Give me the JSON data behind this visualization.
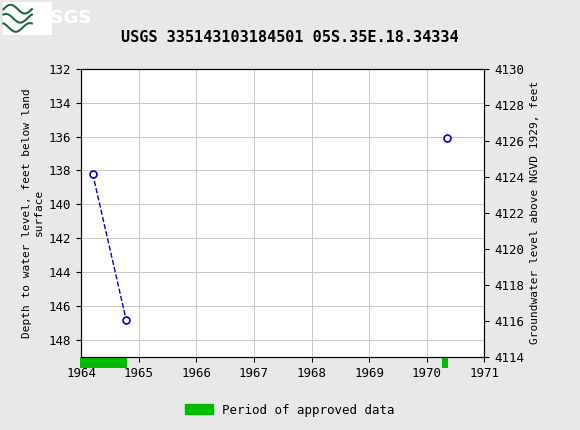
{
  "title": "USGS 335143103184501 05S.35E.18.34334",
  "title_fontsize": 11,
  "background_color": "#e8e8e8",
  "plot_bg_color": "#ffffff",
  "header_color": "#1c6b3a",
  "left_ylabel": "Depth to water level, feet below land\nsurface",
  "right_ylabel": "Groundwater level above NGVD 1929, feet",
  "xlim": [
    1964,
    1971
  ],
  "xticks": [
    1964,
    1965,
    1966,
    1967,
    1968,
    1969,
    1970,
    1971
  ],
  "ylim_left_top": 132,
  "ylim_left_bottom": 149,
  "ylim_right_bottom": 4114,
  "ylim_right_top": 4130,
  "yticks_left": [
    132,
    134,
    136,
    138,
    140,
    142,
    144,
    146,
    148
  ],
  "yticks_right": [
    4114,
    4116,
    4118,
    4120,
    4122,
    4124,
    4126,
    4128,
    4130
  ],
  "data_x": [
    1964.2,
    1964.78,
    1970.35
  ],
  "data_y": [
    138.2,
    146.8,
    136.1
  ],
  "line_color": "#0000cc",
  "marker_facecolor": "#ffffff",
  "marker_edgecolor": "#0000cc",
  "marker_size": 5,
  "marker_linewidth": 1.2,
  "line_linewidth": 1.0,
  "approved_periods": [
    {
      "x_start": 1963.98,
      "x_end": 1964.8
    },
    {
      "x_start": 1970.27,
      "x_end": 1970.37
    }
  ],
  "approved_color": "#00bb00",
  "legend_label": "Period of approved data",
  "grid_color": "#c8c8c8",
  "tick_fontsize": 9,
  "ylabel_fontsize": 8
}
